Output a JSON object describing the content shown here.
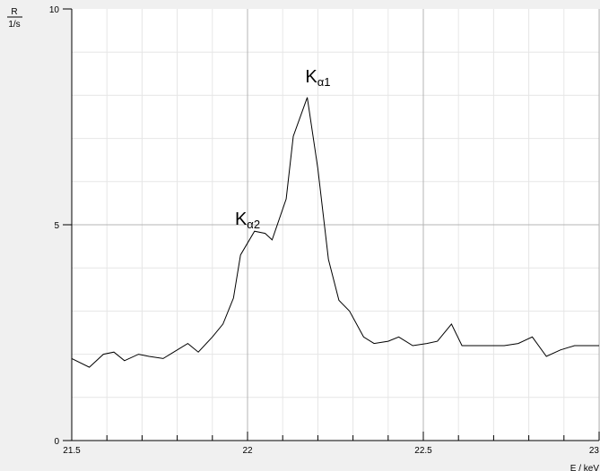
{
  "chart_data": {
    "type": "line",
    "title": "",
    "ylabel": {
      "quantity": "R",
      "unit": "1/s"
    },
    "xlabel": {
      "quantity": "E",
      "unit": "keV",
      "text": "E / keV"
    },
    "xlim": [
      21.5,
      23
    ],
    "ylim": [
      0,
      10
    ],
    "x_major_ticks": [
      21.5,
      22,
      22.5,
      23
    ],
    "x_tick_labels": [
      "21.5",
      "22",
      "22.5",
      "23"
    ],
    "y_major_ticks": [
      0,
      5,
      10
    ],
    "y_tick_labels": [
      "0",
      "5",
      "10"
    ],
    "grid": true,
    "series": [
      {
        "color": "#000000",
        "x": [
          21.5,
          21.55,
          21.59,
          21.62,
          21.65,
          21.69,
          21.72,
          21.76,
          21.79,
          21.83,
          21.86,
          21.9,
          21.93,
          21.96,
          21.98,
          22.02,
          22.05,
          22.07,
          22.11,
          22.13,
          22.17,
          22.2,
          22.23,
          22.26,
          22.29,
          22.33,
          22.36,
          22.4,
          22.43,
          22.47,
          22.51,
          22.54,
          22.58,
          22.61,
          22.66,
          22.69,
          22.73,
          22.77,
          22.81,
          22.85,
          22.89,
          22.93,
          22.97,
          23.0
        ],
        "values": [
          1.9,
          1.7,
          2.0,
          2.05,
          1.85,
          2.0,
          1.95,
          1.9,
          2.05,
          2.25,
          2.05,
          2.4,
          2.7,
          3.3,
          4.3,
          4.85,
          4.8,
          4.65,
          5.6,
          7.05,
          7.95,
          6.3,
          4.2,
          3.25,
          3.0,
          2.4,
          2.25,
          2.3,
          2.4,
          2.2,
          2.25,
          2.3,
          2.7,
          2.2,
          2.2,
          2.2,
          2.2,
          2.25,
          2.4,
          1.95,
          2.1,
          2.2,
          2.2,
          2.2
        ]
      }
    ],
    "annotations": [
      {
        "base": "K",
        "sub": "α2",
        "x": 22.0,
        "y": 5.0
      },
      {
        "base": "K",
        "sub": "α1",
        "x": 22.2,
        "y": 8.3
      }
    ]
  }
}
